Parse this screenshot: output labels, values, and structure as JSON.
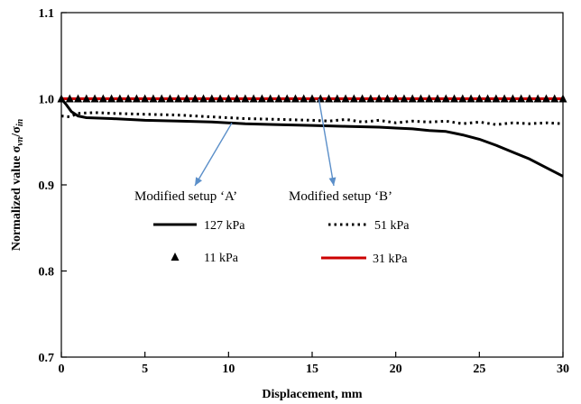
{
  "chart_data": {
    "type": "line",
    "xlabel": "Displacement, mm",
    "ylabel_parts": {
      "prefix": "Normalized  value  ",
      "sigma1": "σ",
      "sub1": "vn",
      "slash": "/",
      "sigma2": "σ",
      "sub2": "in"
    },
    "xlim": [
      0,
      30
    ],
    "ylim": [
      0.7,
      1.1
    ],
    "x_ticks": [
      0,
      5,
      10,
      15,
      20,
      25,
      30
    ],
    "y_ticks": [
      "0.7",
      "0.8",
      "0.9",
      "1.0",
      "1.1"
    ],
    "grid": false,
    "legend_position": "center",
    "annotations": [
      {
        "text": "Modified setup ‘A’",
        "points_to": {
          "x": 10.2,
          "y": 0.972
        }
      },
      {
        "text": "Modified setup ‘B’",
        "points_to": {
          "x": 15.4,
          "y": 1.0
        }
      }
    ],
    "arrow_color": "#5b8fc9",
    "series": [
      {
        "name": "127 kPa",
        "style": "solid",
        "marker": "none",
        "color": "#000000",
        "x": [
          0,
          0.3,
          0.6,
          1.0,
          1.5,
          3,
          5,
          7,
          9,
          11,
          13,
          15,
          17,
          19,
          20,
          21,
          22,
          23,
          24,
          25,
          26,
          27,
          28,
          29,
          30
        ],
        "y": [
          1.0,
          0.993,
          0.985,
          0.98,
          0.978,
          0.977,
          0.975,
          0.974,
          0.973,
          0.971,
          0.97,
          0.969,
          0.968,
          0.967,
          0.966,
          0.965,
          0.963,
          0.962,
          0.958,
          0.953,
          0.946,
          0.938,
          0.93,
          0.92,
          0.91
        ]
      },
      {
        "name": "51 kPa",
        "style": "dotted",
        "marker": "none",
        "color": "#000000",
        "x": [
          0,
          0.5,
          1,
          2,
          3,
          5,
          7,
          9,
          11,
          13,
          15,
          16,
          17,
          18,
          19,
          20,
          21,
          22,
          23,
          24,
          25,
          26,
          27,
          28,
          29,
          30
        ],
        "y": [
          0.98,
          0.979,
          0.983,
          0.984,
          0.983,
          0.982,
          0.981,
          0.979,
          0.977,
          0.976,
          0.975,
          0.974,
          0.976,
          0.973,
          0.975,
          0.972,
          0.974,
          0.973,
          0.974,
          0.971,
          0.973,
          0.97,
          0.972,
          0.971,
          0.972,
          0.971
        ]
      },
      {
        "name": "11 kPa",
        "style": "none",
        "marker": "triangle",
        "color": "#000000",
        "x": [
          0,
          0.5,
          1,
          1.5,
          2,
          2.5,
          3,
          3.5,
          4,
          4.5,
          5,
          5.5,
          6,
          6.5,
          7,
          7.5,
          8,
          8.5,
          9,
          9.5,
          10,
          10.5,
          11,
          11.5,
          12,
          12.5,
          13,
          13.5,
          14,
          14.5,
          15,
          15.5,
          16,
          16.5,
          17,
          17.5,
          18,
          18.5,
          19,
          19.5,
          20,
          20.5,
          21,
          21.5,
          22,
          22.5,
          23,
          23.5,
          24,
          24.5,
          25,
          25.5,
          26,
          26.5,
          27,
          27.5,
          28,
          28.5,
          29,
          29.5,
          30
        ],
        "y": [
          1.0,
          1.0,
          1.0,
          1.0,
          1.0,
          1.0,
          1.0,
          1.0,
          1.0,
          1.0,
          1.0,
          1.0,
          1.0,
          1.0,
          1.0,
          1.0,
          1.0,
          1.0,
          1.0,
          1.0,
          1.0,
          1.0,
          1.0,
          1.0,
          1.0,
          1.0,
          1.0,
          1.0,
          1.0,
          1.0,
          1.0,
          1.0,
          1.0,
          1.0,
          1.0,
          1.0,
          1.0,
          1.0,
          1.0,
          1.0,
          1.0,
          1.0,
          1.0,
          1.0,
          1.0,
          1.0,
          1.0,
          1.0,
          1.0,
          1.0,
          1.0,
          1.0,
          1.0,
          1.0,
          1.0,
          1.0,
          1.0,
          1.0,
          1.0,
          1.0,
          1.0
        ]
      },
      {
        "name": "31 kPa",
        "style": "solid",
        "marker": "none",
        "color": "#cc0000",
        "x": [
          0,
          30
        ],
        "y": [
          1.0,
          1.0
        ]
      }
    ]
  }
}
